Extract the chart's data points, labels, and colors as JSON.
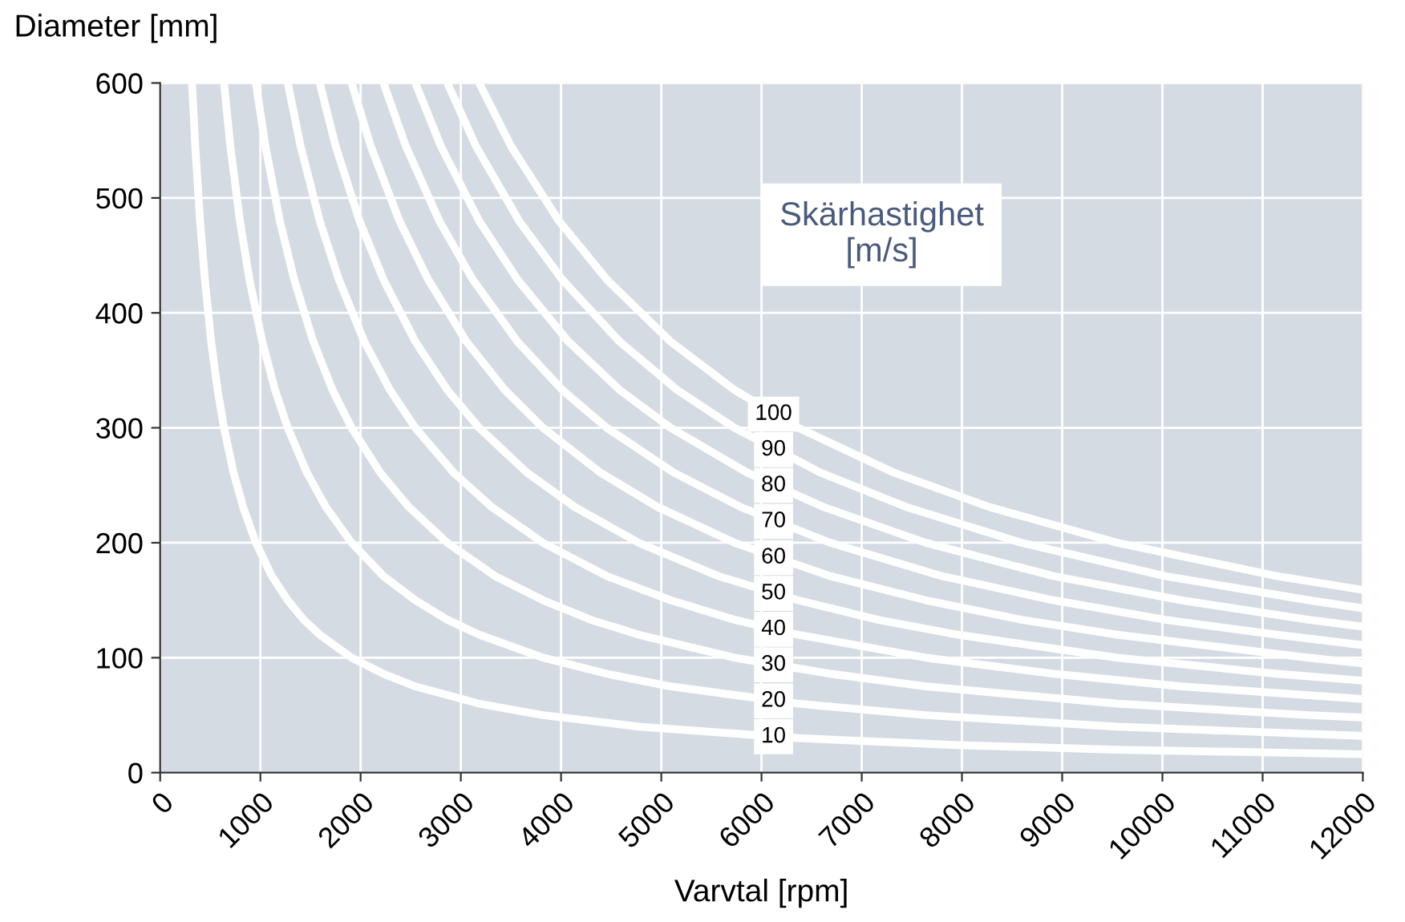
{
  "chart_data": {
    "type": "line",
    "ylabel": "Diameter [mm]",
    "xlabel": "Varvtal [rpm]",
    "xlim": [
      0,
      12000
    ],
    "ylim": [
      0,
      600
    ],
    "xticks": [
      0,
      1000,
      2000,
      3000,
      4000,
      5000,
      6000,
      7000,
      8000,
      9000,
      10000,
      11000,
      12000
    ],
    "yticks": [
      0,
      100,
      200,
      300,
      400,
      500,
      600
    ],
    "grid": true,
    "legend": "center",
    "marker": "none",
    "line_style": "solid",
    "annotations": [
      "Skärhastighet\n[m/s]"
    ],
    "series": [
      {
        "name": "10",
        "color": "#ffffff",
        "x": [
          318,
          350,
          398,
          446,
          509,
          573,
          637,
          732,
          828,
          955,
          1114,
          1273,
          1432,
          1592,
          1910,
          2228,
          2546,
          3183,
          3820,
          4775,
          6366,
          7958,
          9549,
          12000
        ],
        "values": [
          600,
          545,
          480,
          429,
          375,
          333,
          300,
          261,
          231,
          200,
          171,
          150,
          133,
          120,
          100,
          86,
          75,
          60,
          50,
          40,
          30,
          24,
          20,
          16
        ]
      },
      {
        "name": "20",
        "color": "#ffffff",
        "x": [
          637,
          700,
          796,
          891,
          1019,
          1146,
          1273,
          1464,
          1655,
          1910,
          2228,
          2546,
          2865,
          3183,
          3820,
          4456,
          5093,
          6366,
          7639,
          9549,
          12000
        ],
        "values": [
          600,
          545,
          480,
          429,
          375,
          333,
          300,
          261,
          231,
          200,
          171,
          150,
          133,
          120,
          100,
          86,
          75,
          60,
          50,
          40,
          32
        ]
      },
      {
        "name": "30",
        "color": "#ffffff",
        "x": [
          955,
          1050,
          1194,
          1337,
          1528,
          1719,
          1910,
          2196,
          2483,
          2865,
          3342,
          3820,
          4297,
          4775,
          5730,
          6685,
          7639,
          9549,
          11459,
          12000
        ],
        "values": [
          600,
          545,
          480,
          429,
          375,
          333,
          300,
          261,
          231,
          200,
          171,
          150,
          133,
          120,
          100,
          86,
          75,
          60,
          50,
          48
        ]
      },
      {
        "name": "40",
        "color": "#ffffff",
        "x": [
          1273,
          1401,
          1592,
          1783,
          2037,
          2292,
          2546,
          2928,
          3310,
          3820,
          4456,
          5093,
          5730,
          6366,
          7639,
          8913,
          10186,
          12000
        ],
        "values": [
          600,
          545,
          480,
          429,
          375,
          333,
          300,
          261,
          231,
          200,
          171,
          150,
          133,
          120,
          100,
          86,
          75,
          64
        ]
      },
      {
        "name": "50",
        "color": "#ffffff",
        "x": [
          1592,
          1751,
          1989,
          2228,
          2546,
          2865,
          3183,
          3660,
          4138,
          4775,
          5570,
          6366,
          7162,
          7958,
          9549,
          11141,
          12000
        ],
        "values": [
          600,
          545,
          480,
          429,
          375,
          333,
          300,
          261,
          231,
          200,
          171,
          150,
          133,
          120,
          100,
          86,
          80
        ]
      },
      {
        "name": "60",
        "color": "#ffffff",
        "x": [
          1910,
          2101,
          2387,
          2674,
          3056,
          3438,
          3820,
          4393,
          4966,
          5730,
          6685,
          7639,
          8594,
          9549,
          11459,
          12000
        ],
        "values": [
          600,
          545,
          480,
          429,
          375,
          333,
          300,
          261,
          231,
          200,
          171,
          150,
          133,
          120,
          100,
          95
        ]
      },
      {
        "name": "70",
        "color": "#ffffff",
        "x": [
          2228,
          2451,
          2785,
          3119,
          3565,
          4011,
          4456,
          5125,
          5793,
          6685,
          7799,
          8913,
          10027,
          11141,
          12000
        ],
        "values": [
          600,
          545,
          480,
          429,
          375,
          333,
          300,
          261,
          231,
          200,
          171,
          150,
          133,
          120,
          111
        ]
      },
      {
        "name": "80",
        "color": "#ffffff",
        "x": [
          2546,
          2801,
          3183,
          3565,
          4074,
          4584,
          5093,
          5857,
          6621,
          7639,
          8913,
          10186,
          11459,
          12000
        ],
        "values": [
          600,
          545,
          480,
          429,
          375,
          333,
          300,
          261,
          231,
          200,
          171,
          150,
          133,
          127
        ]
      },
      {
        "name": "90",
        "color": "#ffffff",
        "x": [
          2865,
          3151,
          3581,
          4011,
          4584,
          5157,
          5730,
          6589,
          7449,
          8594,
          10027,
          11459,
          12000
        ],
        "values": [
          600,
          545,
          480,
          429,
          375,
          333,
          300,
          261,
          231,
          200,
          171,
          150,
          143
        ]
      },
      {
        "name": "100",
        "color": "#ffffff",
        "x": [
          3183,
          3501,
          3979,
          4456,
          5093,
          5730,
          6366,
          7321,
          8276,
          9549,
          11141,
          12000
        ],
        "values": [
          600,
          545,
          480,
          429,
          375,
          333,
          300,
          261,
          231,
          200,
          171,
          159
        ]
      }
    ]
  }
}
